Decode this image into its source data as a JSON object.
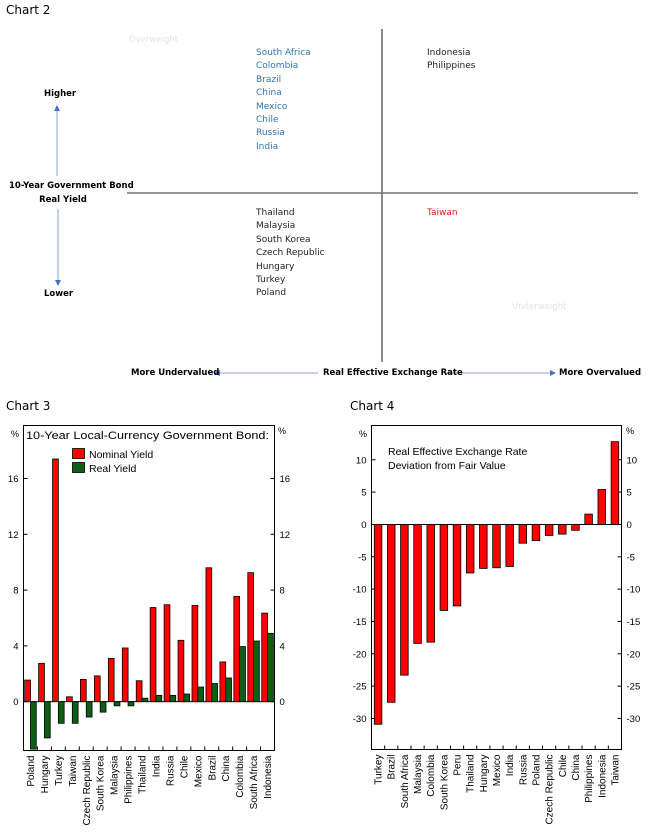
{
  "chart2": {
    "title": "Chart 2",
    "type": "quadrant",
    "y_axis": {
      "title_line1": "10-Year Government Bond",
      "title_line2": "Real Yield",
      "top_label": "Higher",
      "bottom_label": "Lower"
    },
    "x_axis": {
      "title": "Real Effective Exchange Rate",
      "left_label": "More Undervalued",
      "right_label": "More Overvalued"
    },
    "watermarks": {
      "top_left": "Overweight",
      "bottom_right": "Underweight"
    },
    "quadrants": {
      "upper_left": {
        "color": "#2e75b6",
        "countries": [
          "South Africa",
          "Colombia",
          "Brazil",
          "China",
          "Mexico",
          "Chile",
          "Russia",
          "India"
        ]
      },
      "upper_right": {
        "color": "#222222",
        "countries": [
          "Indonesia",
          "Philippines"
        ]
      },
      "lower_left": {
        "color": "#222222",
        "countries": [
          "Thailand",
          "Malaysia",
          "South Korea",
          "Czech Republic",
          "Hungary",
          "Turkey",
          "Poland"
        ]
      },
      "lower_right": {
        "color": "#e81c1c",
        "countries": [
          "Taiwan"
        ]
      }
    }
  },
  "chart_data": [
    {
      "type": "bar",
      "panel_title": "Chart 3",
      "title": "10-Year Local-Currency Government Bond:",
      "ylabel_left": "%",
      "ylabel_right": "%",
      "ylim": [
        -3.5,
        19.8
      ],
      "yticks": [
        0,
        4,
        8,
        12,
        16
      ],
      "legend_position": "top-left",
      "categories": [
        "Poland",
        "Hungary",
        "Turkey",
        "Taiwan",
        "Czech Republic",
        "South Korea",
        "Malaysia",
        "Philippines",
        "Thailand",
        "India",
        "Russia",
        "Chile",
        "Mexico",
        "Brazil",
        "China",
        "Colombia",
        "South Africa",
        "Indonesia"
      ],
      "series": [
        {
          "name": "Nominal Yield",
          "color": "#ff0000",
          "values": [
            1.55,
            2.75,
            17.4,
            0.35,
            1.6,
            1.85,
            3.1,
            3.85,
            1.5,
            6.75,
            6.95,
            4.4,
            6.9,
            9.6,
            2.85,
            7.55,
            9.25,
            6.35
          ]
        },
        {
          "name": "Real Yield",
          "color": "#0d5e16",
          "values": [
            -3.4,
            -2.6,
            -1.55,
            -1.55,
            -1.1,
            -0.75,
            -0.3,
            -0.3,
            0.25,
            0.45,
            0.45,
            0.55,
            1.05,
            1.3,
            1.7,
            3.95,
            4.35,
            4.9
          ]
        }
      ]
    },
    {
      "type": "bar",
      "panel_title": "Chart 4",
      "title": "Real Effective Exchange Rate Deviation from Fair Value",
      "title_line1": "Real Effective Exchange Rate",
      "title_line2": "Deviation from Fair Value",
      "ylabel_left": "%",
      "ylabel_right": "%",
      "ylim": [
        -34.8,
        15.3
      ],
      "yticks": [
        -30,
        -25,
        -20,
        -15,
        -10,
        -5,
        0,
        5,
        10
      ],
      "categories": [
        "Turkey",
        "Brazil",
        "South Africa",
        "Malaysia",
        "Colombia",
        "South Korea",
        "Peru",
        "Thailand",
        "Hungary",
        "Mexico",
        "India",
        "Russia",
        "Poland",
        "Czech Republic",
        "Chile",
        "China",
        "Philippines",
        "Indonesia",
        "Taiwan"
      ],
      "series": [
        {
          "name": "REER deviation",
          "color": "#ff0000",
          "values": [
            -30.9,
            -27.5,
            -23.3,
            -18.4,
            -18.2,
            -13.3,
            -12.6,
            -7.5,
            -6.8,
            -6.7,
            -6.5,
            -2.9,
            -2.5,
            -1.7,
            -1.5,
            -0.9,
            1.6,
            5.4,
            12.8
          ]
        }
      ]
    }
  ]
}
